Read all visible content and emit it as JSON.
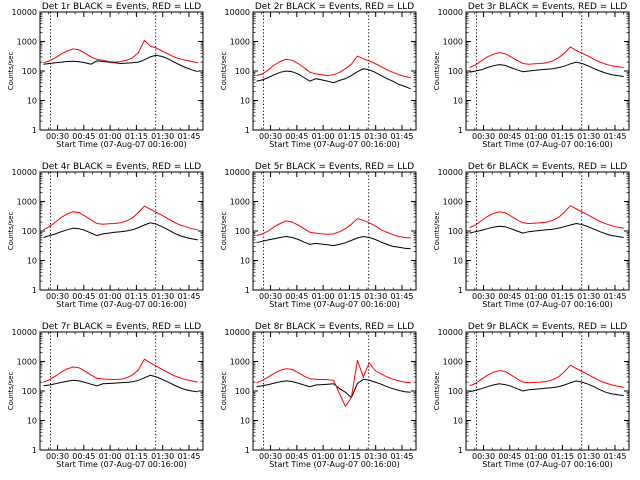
{
  "chart_data": [
    {
      "type": "line",
      "title": "Det 1r BLACK = Events, RED = LLD",
      "xlabel": "Start Time (07-Aug-07 00:16:00)",
      "ylabel": "Counts/sec",
      "yscale": "log",
      "ylim": [
        1,
        10000
      ],
      "x_ticks": [
        "00:30",
        "00:45",
        "01:00",
        "01:15",
        "01:30",
        "01:45"
      ],
      "y_ticks": [
        "1",
        "10",
        "100",
        "1000",
        "10000"
      ],
      "series": [
        {
          "name": "Events",
          "color": "#000000",
          "values": [
            170,
            180,
            190,
            200,
            210,
            215,
            205,
            190,
            170,
            220,
            210,
            200,
            190,
            180,
            185,
            190,
            200,
            240,
            300,
            340,
            310,
            260,
            200,
            160,
            130,
            110,
            95
          ]
        },
        {
          "name": "LLD",
          "color": "#ff0000",
          "values": [
            190,
            220,
            280,
            380,
            480,
            560,
            520,
            400,
            300,
            250,
            230,
            210,
            200,
            210,
            230,
            280,
            420,
            1100,
            700,
            600,
            480,
            380,
            300,
            260,
            230,
            210,
            190
          ]
        }
      ],
      "dotted_x": [
        "00:30",
        "01:30"
      ]
    },
    {
      "type": "line",
      "title": "Det 2r BLACK = Events, RED = LLD",
      "xlabel": "Start Time (07-Aug-07 00:16:00)",
      "ylabel": "Counts/sec",
      "yscale": "log",
      "ylim": [
        1,
        10000
      ],
      "x_ticks": [
        "00:30",
        "00:45",
        "01:00",
        "01:15",
        "01:30",
        "01:45"
      ],
      "y_ticks": [
        "1",
        "10",
        "100",
        "1000",
        "10000"
      ],
      "series": [
        {
          "name": "Events",
          "color": "#000000",
          "values": [
            45,
            50,
            60,
            75,
            90,
            100,
            95,
            80,
            60,
            45,
            55,
            50,
            45,
            40,
            48,
            55,
            70,
            95,
            120,
            110,
            90,
            70,
            55,
            45,
            35,
            30,
            25
          ]
        },
        {
          "name": "LLD",
          "color": "#ff0000",
          "values": [
            70,
            80,
            110,
            160,
            210,
            250,
            230,
            180,
            130,
            90,
            80,
            75,
            70,
            75,
            90,
            120,
            170,
            320,
            260,
            220,
            180,
            140,
            110,
            90,
            75,
            65,
            60
          ]
        }
      ],
      "dotted_x": [
        "00:30",
        "01:30"
      ]
    },
    {
      "type": "line",
      "title": "Det 3r BLACK = Events, RED = LLD",
      "xlabel": "Start Time (07-Aug-07 00:16:00)",
      "ylabel": "Counts/sec",
      "yscale": "log",
      "ylim": [
        1,
        10000
      ],
      "x_ticks": [
        "00:30",
        "00:45",
        "01:00",
        "01:15",
        "01:30",
        "01:45"
      ],
      "y_ticks": [
        "1",
        "10",
        "100",
        "1000",
        "10000"
      ],
      "series": [
        {
          "name": "Events",
          "color": "#000000",
          "values": [
            90,
            100,
            110,
            130,
            150,
            165,
            155,
            130,
            110,
            95,
            100,
            105,
            110,
            115,
            120,
            130,
            145,
            175,
            200,
            180,
            150,
            120,
            100,
            85,
            75,
            70,
            65
          ]
        },
        {
          "name": "LLD",
          "color": "#ff0000",
          "values": [
            130,
            160,
            220,
            300,
            370,
            420,
            390,
            300,
            230,
            180,
            170,
            175,
            180,
            190,
            220,
            280,
            400,
            650,
            500,
            400,
            320,
            250,
            200,
            170,
            150,
            140,
            130
          ]
        }
      ],
      "dotted_x": [
        "00:30",
        "01:30"
      ]
    },
    {
      "type": "line",
      "title": "Det 4r BLACK = Events, RED = LLD",
      "xlabel": "Start Time (07-Aug-07 00:16:00)",
      "ylabel": "Counts/sec",
      "yscale": "log",
      "ylim": [
        1,
        10000
      ],
      "x_ticks": [
        "00:30",
        "00:45",
        "01:00",
        "01:15",
        "01:30",
        "01:45"
      ],
      "y_ticks": [
        "1",
        "10",
        "100",
        "1000",
        "10000"
      ],
      "series": [
        {
          "name": "Events",
          "color": "#000000",
          "values": [
            60,
            70,
            80,
            95,
            110,
            125,
            120,
            105,
            85,
            70,
            80,
            85,
            90,
            95,
            100,
            110,
            130,
            160,
            190,
            170,
            140,
            110,
            85,
            70,
            60,
            55,
            50
          ]
        },
        {
          "name": "LLD",
          "color": "#ff0000",
          "values": [
            110,
            140,
            200,
            290,
            380,
            450,
            420,
            320,
            240,
            180,
            170,
            175,
            180,
            190,
            220,
            280,
            420,
            700,
            550,
            430,
            340,
            260,
            200,
            160,
            140,
            120,
            110
          ]
        }
      ],
      "dotted_x": [
        "00:30",
        "01:30"
      ]
    },
    {
      "type": "line",
      "title": "Det 5r BLACK = Events, RED = LLD",
      "xlabel": "Start Time (07-Aug-07 00:16:00)",
      "ylabel": "Counts/sec",
      "yscale": "log",
      "ylim": [
        1,
        10000
      ],
      "x_ticks": [
        "00:30",
        "00:45",
        "01:00",
        "01:15",
        "01:30",
        "01:45"
      ],
      "y_ticks": [
        "1",
        "10",
        "100",
        "1000",
        "10000"
      ],
      "series": [
        {
          "name": "Events",
          "color": "#000000",
          "values": [
            40,
            45,
            50,
            55,
            60,
            65,
            60,
            52,
            42,
            35,
            38,
            36,
            34,
            32,
            35,
            40,
            48,
            58,
            65,
            60,
            52,
            42,
            35,
            30,
            28,
            26,
            25
          ]
        },
        {
          "name": "LLD",
          "color": "#ff0000",
          "values": [
            70,
            80,
            100,
            140,
            180,
            220,
            200,
            160,
            120,
            90,
            85,
            80,
            78,
            80,
            95,
            120,
            170,
            260,
            230,
            190,
            150,
            110,
            90,
            75,
            65,
            60,
            58
          ]
        }
      ],
      "dotted_x": [
        "00:30",
        "01:30"
      ]
    },
    {
      "type": "line",
      "title": "Det 6r BLACK = Events, RED = LLD",
      "xlabel": "Start Time (07-Aug-07 00:16:00)",
      "ylabel": "Counts/sec",
      "yscale": "log",
      "ylim": [
        1,
        10000
      ],
      "x_ticks": [
        "00:30",
        "00:45",
        "01:00",
        "01:15",
        "01:30",
        "01:45"
      ],
      "y_ticks": [
        "1",
        "10",
        "100",
        "1000",
        "10000"
      ],
      "series": [
        {
          "name": "Events",
          "color": "#000000",
          "values": [
            85,
            95,
            105,
            120,
            135,
            145,
            140,
            120,
            100,
            85,
            95,
            100,
            105,
            110,
            115,
            125,
            140,
            160,
            180,
            165,
            140,
            115,
            95,
            80,
            70,
            65,
            60
          ]
        },
        {
          "name": "LLD",
          "color": "#ff0000",
          "values": [
            130,
            160,
            220,
            310,
            390,
            450,
            420,
            320,
            240,
            190,
            180,
            185,
            190,
            200,
            230,
            290,
            430,
            720,
            560,
            440,
            350,
            270,
            210,
            175,
            150,
            135,
            125
          ]
        }
      ],
      "dotted_x": [
        "00:30",
        "01:30"
      ]
    },
    {
      "type": "line",
      "title": "Det 7r BLACK = Events, RED = LLD",
      "xlabel": "Start Time (07-Aug-07 00:16:00)",
      "ylabel": "Counts/sec",
      "yscale": "log",
      "ylim": [
        1,
        10000
      ],
      "x_ticks": [
        "00:30",
        "00:45",
        "01:00",
        "01:15",
        "01:30",
        "01:45"
      ],
      "y_ticks": [
        "1",
        "10",
        "100",
        "1000",
        "10000"
      ],
      "series": [
        {
          "name": "Events",
          "color": "#000000",
          "values": [
            150,
            160,
            175,
            195,
            215,
            230,
            220,
            195,
            170,
            150,
            175,
            180,
            185,
            190,
            195,
            205,
            230,
            280,
            340,
            300,
            250,
            200,
            160,
            130,
            110,
            100,
            95
          ]
        },
        {
          "name": "LLD",
          "color": "#ff0000",
          "values": [
            200,
            240,
            320,
            440,
            560,
            650,
            610,
            470,
            350,
            270,
            255,
            250,
            245,
            250,
            280,
            350,
            520,
            1200,
            900,
            700,
            540,
            420,
            330,
            280,
            240,
            220,
            200
          ]
        }
      ],
      "dotted_x": [
        "00:30",
        "01:30"
      ]
    },
    {
      "type": "line",
      "title": "Det 8r BLACK = Events, RED = LLD",
      "xlabel": "Start Time (07-Aug-07 00:16:00)",
      "ylabel": "Counts/sec",
      "yscale": "log",
      "ylim": [
        1,
        10000
      ],
      "x_ticks": [
        "00:30",
        "00:45",
        "01:00",
        "01:15",
        "01:30",
        "01:45"
      ],
      "y_ticks": [
        "1",
        "10",
        "100",
        "1000",
        "10000"
      ],
      "series": [
        {
          "name": "Events",
          "color": "#000000",
          "values": [
            140,
            150,
            165,
            185,
            205,
            220,
            210,
            185,
            160,
            140,
            160,
            165,
            170,
            175,
            120,
            90,
            60,
            180,
            250,
            230,
            200,
            170,
            140,
            120,
            105,
            95,
            90
          ]
        },
        {
          "name": "LLD",
          "color": "#ff0000",
          "values": [
            190,
            230,
            300,
            400,
            500,
            570,
            540,
            420,
            320,
            260,
            250,
            245,
            240,
            230,
            80,
            30,
            60,
            1100,
            300,
            900,
            500,
            380,
            300,
            250,
            220,
            200,
            190
          ]
        }
      ],
      "dotted_x": [
        "00:30",
        "01:30"
      ]
    },
    {
      "type": "line",
      "title": "Det 9r BLACK = Events, RED = LLD",
      "xlabel": "Start Time (07-Aug-07 00:16:00)",
      "ylabel": "Counts/sec",
      "yscale": "log",
      "ylim": [
        1,
        10000
      ],
      "x_ticks": [
        "00:30",
        "00:45",
        "01:00",
        "01:15",
        "01:30",
        "01:45"
      ],
      "y_ticks": [
        "1",
        "10",
        "100",
        "1000",
        "10000"
      ],
      "series": [
        {
          "name": "Events",
          "color": "#000000",
          "values": [
            95,
            105,
            120,
            140,
            160,
            175,
            165,
            145,
            120,
            100,
            110,
            115,
            120,
            125,
            130,
            140,
            160,
            190,
            220,
            200,
            170,
            140,
            110,
            90,
            80,
            75,
            70
          ]
        },
        {
          "name": "LLD",
          "color": "#ff0000",
          "values": [
            150,
            180,
            250,
            340,
            430,
            490,
            460,
            350,
            260,
            200,
            190,
            195,
            200,
            210,
            240,
            300,
            450,
            750,
            580,
            460,
            360,
            280,
            220,
            185,
            160,
            145,
            135
          ]
        }
      ],
      "dotted_x": [
        "00:30",
        "01:30"
      ]
    }
  ]
}
